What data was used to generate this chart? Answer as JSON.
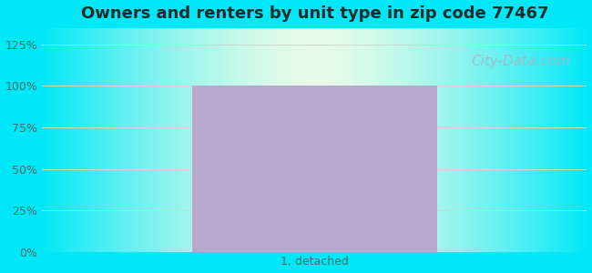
{
  "title": "Owners and renters by unit type in zip code 77467",
  "categories": [
    "1, detached"
  ],
  "values": [
    100
  ],
  "bar_color": "#b8a8cc",
  "bar_width": 0.45,
  "yticks": [
    0,
    25,
    50,
    75,
    100,
    125
  ],
  "ytick_labels": [
    "0%",
    "25%",
    "50%",
    "75%",
    "100%",
    "125%"
  ],
  "ylim": [
    0,
    135
  ],
  "title_fontsize": 13,
  "tick_fontsize": 9,
  "xlabel_fontsize": 9,
  "bg_outer_color": "#00e8f8",
  "watermark": "City-Data.com",
  "watermark_color": "#a8b8c0",
  "watermark_fontsize": 11,
  "gridline_color": "#d0d8d0",
  "tick_color": "#4a6a6a",
  "title_color": "#1a2a2a",
  "xlim": [
    -0.5,
    0.5
  ]
}
